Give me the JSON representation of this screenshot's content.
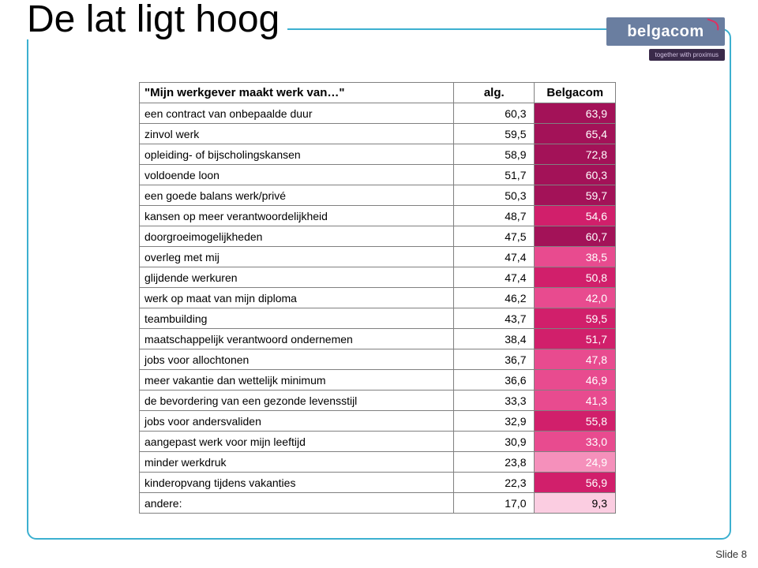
{
  "slide": {
    "title": "De lat ligt hoog",
    "number_label": "Slide 8"
  },
  "logo": {
    "main": "belgacom",
    "sub": "together with  proximus"
  },
  "table": {
    "header": {
      "desc": "\"Mijn werkgever maakt werk van…\"",
      "alg": "alg.",
      "belg": "Belgacom"
    },
    "rows": [
      {
        "desc": "een contract van onbepaalde duur",
        "alg": "60,3",
        "belg": "63,9",
        "belg_color": "#a31258"
      },
      {
        "desc": "zinvol werk",
        "alg": "59,5",
        "belg": "65,4",
        "belg_color": "#a31258"
      },
      {
        "desc": "opleiding- of bijscholingskansen",
        "alg": "58,9",
        "belg": "72,8",
        "belg_color": "#a31258"
      },
      {
        "desc": "voldoende loon",
        "alg": "51,7",
        "belg": "60,3",
        "belg_color": "#a31258"
      },
      {
        "desc": "een goede balans werk/privé",
        "alg": "50,3",
        "belg": "59,7",
        "belg_color": "#a31258"
      },
      {
        "desc": "kansen op meer verantwoordelijkheid",
        "alg": "48,7",
        "belg": "54,6",
        "belg_color": "#d11f6b"
      },
      {
        "desc": "doorgroeimogelijkheden",
        "alg": "47,5",
        "belg": "60,7",
        "belg_color": "#a31258"
      },
      {
        "desc": "overleg met mij",
        "alg": "47,4",
        "belg": "38,5",
        "belg_color": "#e84b8f"
      },
      {
        "desc": "glijdende werkuren",
        "alg": "47,4",
        "belg": "50,8",
        "belg_color": "#d11f6b"
      },
      {
        "desc": "werk op maat van mijn diploma",
        "alg": "46,2",
        "belg": "42,0",
        "belg_color": "#e84b8f"
      },
      {
        "desc": "teambuilding",
        "alg": "43,7",
        "belg": "59,5",
        "belg_color": "#d11f6b"
      },
      {
        "desc": "maatschappelijk verantwoord ondernemen",
        "alg": "38,4",
        "belg": "51,7",
        "belg_color": "#d11f6b"
      },
      {
        "desc": "jobs voor allochtonen",
        "alg": "36,7",
        "belg": "47,8",
        "belg_color": "#e84b8f"
      },
      {
        "desc": "meer vakantie dan wettelijk minimum",
        "alg": "36,6",
        "belg": "46,9",
        "belg_color": "#e84b8f"
      },
      {
        "desc": "de bevordering van een gezonde levensstijl",
        "alg": "33,3",
        "belg": "41,3",
        "belg_color": "#e84b8f"
      },
      {
        "desc": "jobs voor andersvaliden",
        "alg": "32,9",
        "belg": "55,8",
        "belg_color": "#d11f6b"
      },
      {
        "desc": "aangepast werk voor mijn leeftijd",
        "alg": "30,9",
        "belg": "33,0",
        "belg_color": "#e84b8f"
      },
      {
        "desc": "minder werkdruk",
        "alg": "23,8",
        "belg": "24,9",
        "belg_color": "#f590bb"
      },
      {
        "desc": "kinderopvang tijdens vakanties",
        "alg": "22,3",
        "belg": "56,9",
        "belg_color": "#d11f6b"
      },
      {
        "desc": "andere:",
        "alg": "17,0",
        "belg": "9,3",
        "belg_color": "#fbcde1"
      }
    ],
    "last_row_text_color": "#000000"
  },
  "style": {
    "frame_border_color": "#3cb0d0",
    "title_fontsize": 48,
    "cell_fontsize": 14,
    "background": "#ffffff"
  }
}
